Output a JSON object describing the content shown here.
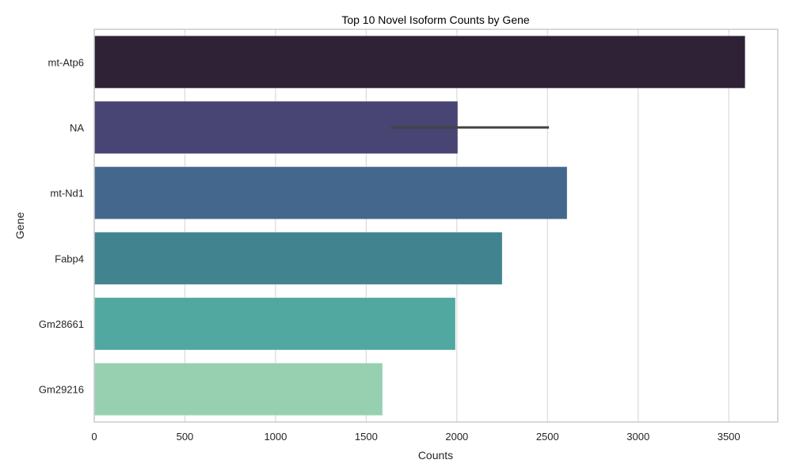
{
  "chart_data": {
    "type": "bar",
    "orientation": "horizontal",
    "title": "Top 10 Novel Isoform Counts by Gene",
    "xlabel": "Counts",
    "ylabel": "Gene",
    "categories": [
      "mt-Atp6",
      "NA",
      "mt-Nd1",
      "Fabp4",
      "Gm28661",
      "Gm29216"
    ],
    "values": [
      3590,
      2005,
      2608,
      2250,
      1992,
      1590
    ],
    "error_bars": [
      null,
      [
        1638,
        2508
      ],
      null,
      null,
      null,
      null
    ],
    "colors": [
      "#2f2237",
      "#484473",
      "#43678d",
      "#41838f",
      "#50a8a0",
      "#96d0b1"
    ],
    "xlim": [
      0,
      3770
    ],
    "xticks": [
      0,
      500,
      1000,
      1500,
      2000,
      2500,
      3000,
      3500
    ],
    "grid": true,
    "legend": null
  }
}
